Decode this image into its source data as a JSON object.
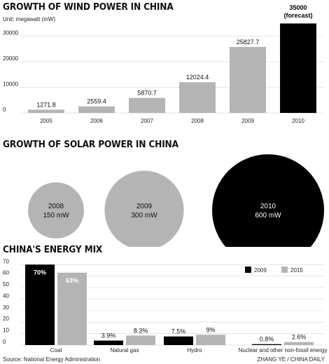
{
  "wind": {
    "title": "GROWTH OF WIND POWER IN CHINA",
    "unit": "Unit: megawatt (mW)",
    "chart_data": {
      "type": "bar",
      "title": "GROWTH OF WIND POWER IN CHINA",
      "ylabel": "Unit: megawatt (mW)",
      "categories": [
        "2005",
        "2006",
        "2007",
        "2008",
        "2009",
        "2010"
      ],
      "values": [
        1271.8,
        2559.4,
        5870.7,
        12024.4,
        25827.7,
        35000
      ],
      "labels": [
        "1271.8",
        "2559.4",
        "5870.7",
        "12024.4",
        "25827.7",
        "35000"
      ],
      "forecast_note": "(forecast)",
      "highlight_index": 5,
      "yticks": [
        0,
        10000,
        20000,
        30000
      ],
      "ylim": [
        0,
        36500
      ],
      "grid": true,
      "colors": {
        "bar": "#b4b4b4",
        "highlight": "#000000",
        "grid": "#d9d9d9"
      }
    }
  },
  "solar": {
    "title": "GROWTH OF SOLAR POWER IN CHINA",
    "chart_data": {
      "type": "bubble",
      "items": [
        {
          "year": "2008",
          "value_label": "150 mW",
          "value": 150,
          "color": "#b4b4b4"
        },
        {
          "year": "2009",
          "value_label": "300 mW",
          "value": 300,
          "color": "#b4b4b4"
        },
        {
          "year": "2010",
          "value_label": "600 mW",
          "value": 600,
          "color": "#000000"
        }
      ]
    }
  },
  "energy": {
    "title": "CHINA'S ENERGY MIX",
    "chart_data": {
      "type": "bar",
      "title": "CHINA'S ENERGY MIX",
      "categories": [
        "Coal",
        "Natural gas",
        "Hydro",
        "Nuclear and other non-fossil energy"
      ],
      "series": [
        {
          "name": "2009",
          "values": [
            70,
            3.9,
            7.5,
            0.8
          ],
          "labels": [
            "70%",
            "3.9%",
            "7.5%",
            "0.8%"
          ],
          "color": "#000000"
        },
        {
          "name": "2015",
          "values": [
            63,
            8.3,
            9,
            2.6
          ],
          "labels": [
            "63%",
            "8.3%",
            "9%",
            "2.6%"
          ],
          "color": "#b4b4b4"
        }
      ],
      "yticks": [
        0,
        10,
        20,
        30,
        40,
        50,
        60,
        70
      ],
      "ylim": [
        0,
        72
      ],
      "grid": true,
      "legend": "top-right"
    }
  },
  "footer": {
    "source": "Source: National Energy Administration",
    "credit": "ZHANG YE / CHINA DAILY"
  }
}
